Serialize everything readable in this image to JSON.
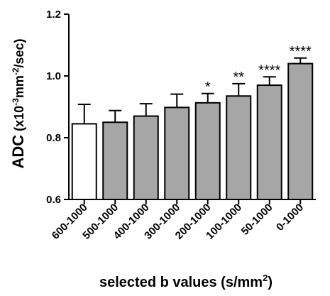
{
  "chart_data": {
    "type": "bar",
    "categories": [
      "600-1000",
      "500-1000",
      "400-1000",
      "300-1000",
      "200-1000",
      "100-1000",
      "50-1000",
      "0-1000"
    ],
    "values": [
      0.845,
      0.85,
      0.87,
      0.898,
      0.913,
      0.935,
      0.97,
      1.04
    ],
    "errors": [
      0.063,
      0.038,
      0.04,
      0.043,
      0.03,
      0.04,
      0.027,
      0.018
    ],
    "significance": [
      "",
      "",
      "",
      "",
      "*",
      "**",
      "****",
      "****"
    ],
    "bar_colors": [
      "#ffffff",
      "#a6a6a6",
      "#a6a6a6",
      "#a6a6a6",
      "#a6a6a6",
      "#a6a6a6",
      "#a6a6a6",
      "#a6a6a6"
    ],
    "ylim": [
      0.6,
      1.2
    ],
    "yticks": [
      "0.6",
      "0.8",
      "1.0",
      "1.2"
    ],
    "ylabel": {
      "main": "ADC",
      "paren_open": " (x10",
      "exp1": "-3",
      "mid": "mm",
      "exp2": "-2",
      "end": "/sec)"
    },
    "xlabel": {
      "main": "selected b values (s/mm",
      "exp": "2",
      "end": ")"
    },
    "grid": false
  }
}
